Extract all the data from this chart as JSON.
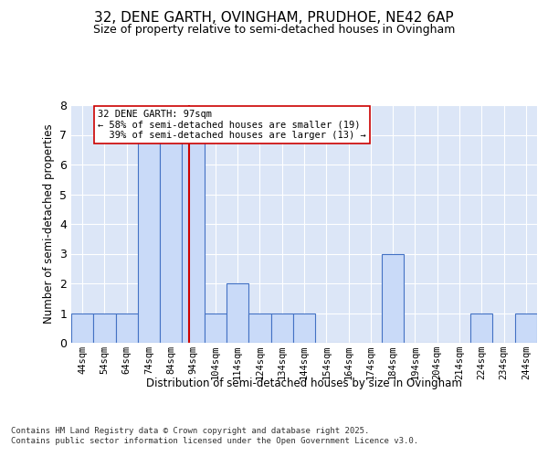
{
  "title_line1": "32, DENE GARTH, OVINGHAM, PRUDHOE, NE42 6AP",
  "title_line2": "Size of property relative to semi-detached houses in Ovingham",
  "xlabel": "Distribution of semi-detached houses by size in Ovingham",
  "ylabel": "Number of semi-detached properties",
  "bin_labels": [
    "44sqm",
    "54sqm",
    "64sqm",
    "74sqm",
    "84sqm",
    "94sqm",
    "104sqm",
    "114sqm",
    "124sqm",
    "134sqm",
    "144sqm",
    "154sqm",
    "164sqm",
    "174sqm",
    "184sqm",
    "194sqm",
    "204sqm",
    "214sqm",
    "224sqm",
    "234sqm",
    "244sqm"
  ],
  "bin_edges": [
    44,
    54,
    64,
    74,
    84,
    94,
    104,
    114,
    124,
    134,
    144,
    154,
    164,
    174,
    184,
    194,
    204,
    214,
    224,
    234,
    244
  ],
  "values": [
    1,
    1,
    1,
    7,
    7,
    7,
    1,
    2,
    1,
    1,
    1,
    0,
    0,
    0,
    3,
    0,
    0,
    0,
    1,
    0,
    1
  ],
  "property_value": 97,
  "property_label": "32 DENE GARTH: 97sqm",
  "pct_smaller": 58,
  "n_smaller": 19,
  "pct_larger": 39,
  "n_larger": 13,
  "bar_color": "#c9daf8",
  "bar_edge_color": "#4472c4",
  "property_line_color": "#cc0000",
  "annotation_box_edge": "#cc0000",
  "background_color": "#ffffff",
  "plot_bg_color": "#dce6f7",
  "grid_color": "#ffffff",
  "footer_text": "Contains HM Land Registry data © Crown copyright and database right 2025.\nContains public sector information licensed under the Open Government Licence v3.0.",
  "ylim": [
    0,
    8
  ],
  "yticks": [
    0,
    1,
    2,
    3,
    4,
    5,
    6,
    7,
    8
  ],
  "title_fontsize": 11,
  "subtitle_fontsize": 9
}
